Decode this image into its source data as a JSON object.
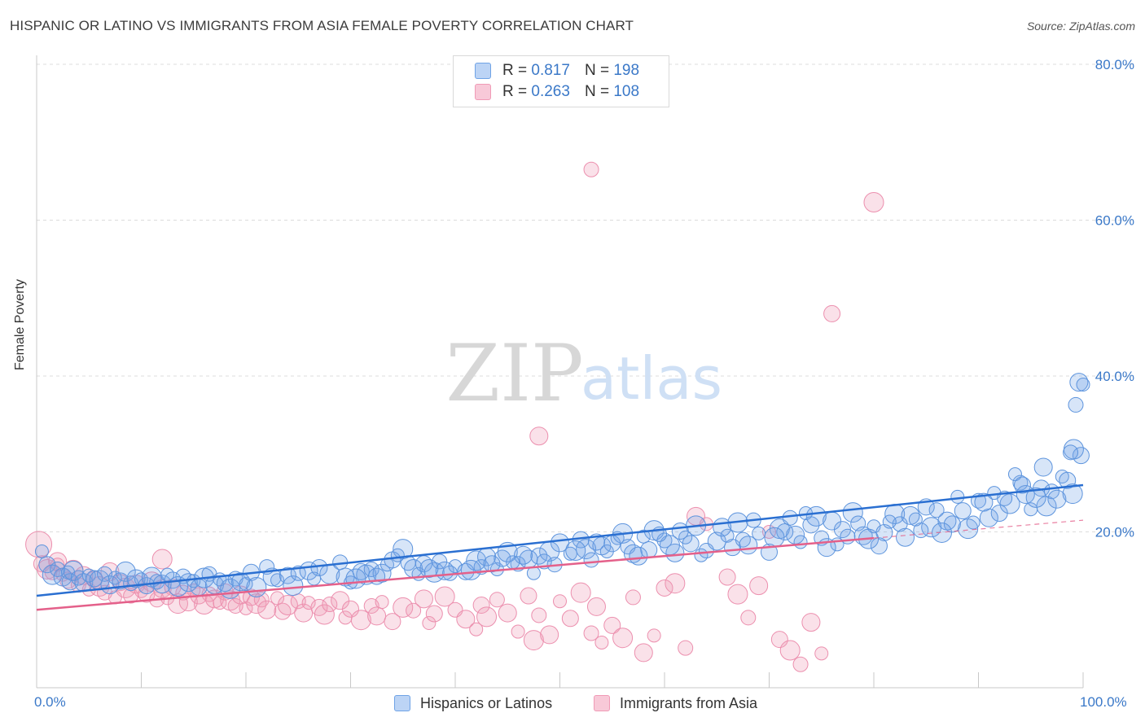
{
  "title": "HISPANIC OR LATINO VS IMMIGRANTS FROM ASIA FEMALE POVERTY CORRELATION CHART",
  "source": "Source: ZipAtlas.com",
  "watermark": {
    "zip": "ZIP",
    "atlas": "atlas"
  },
  "legend_top": {
    "rows": [
      {
        "r_label": "R =",
        "r_value": "0.817",
        "n_label": "N =",
        "n_value": "198"
      },
      {
        "r_label": "R =",
        "r_value": "0.263",
        "n_label": "N =",
        "n_value": "108"
      }
    ]
  },
  "legend_bottom": {
    "series1": "Hispanics or Latinos",
    "series2": "Immigrants from Asia"
  },
  "colors": {
    "blue": "#6fa3e6",
    "blue_line": "#2a6fd1",
    "pink": "#f09ab6",
    "pink_line": "#e4608a",
    "axis_text": "#3a78c8"
  },
  "chart_data": {
    "type": "scatter",
    "ylabel": "Female Poverty",
    "xlim": [
      0,
      100
    ],
    "ylim": [
      0,
      80
    ],
    "y_ticks": [
      "20.0%",
      "40.0%",
      "60.0%",
      "80.0%"
    ],
    "y_tick_values": [
      20,
      40,
      60,
      80
    ],
    "x_tick_labels": [
      "0.0%",
      "100.0%"
    ],
    "grid": true,
    "series": [
      {
        "name": "Hispanics or Latinos",
        "color": "#6fa3e6",
        "trend": {
          "x": [
            0,
            100
          ],
          "y": [
            11.8,
            26.0
          ]
        },
        "points": [
          [
            0.5,
            17.5
          ],
          [
            1,
            15.8
          ],
          [
            1.5,
            14.5
          ],
          [
            2,
            15.2
          ],
          [
            2.5,
            14.2
          ],
          [
            3,
            14.8
          ],
          [
            3.2,
            13.6
          ],
          [
            3.5,
            15.0
          ],
          [
            4,
            14.1
          ],
          [
            4.5,
            13.5
          ],
          [
            5,
            14.4
          ],
          [
            5.5,
            14.0
          ],
          [
            6,
            13.8
          ],
          [
            6.5,
            14.6
          ],
          [
            7,
            13.2
          ],
          [
            7.5,
            14.1
          ],
          [
            8,
            13.7
          ],
          [
            8.5,
            14.9
          ],
          [
            9,
            13.4
          ],
          [
            9.5,
            14.0
          ],
          [
            10,
            13.9
          ],
          [
            10.5,
            13.1
          ],
          [
            11,
            14.2
          ],
          [
            11.5,
            13.6
          ],
          [
            12,
            13.3
          ],
          [
            12.5,
            14.5
          ],
          [
            13,
            13.8
          ],
          [
            13.5,
            13.0
          ],
          [
            14,
            14.3
          ],
          [
            14.5,
            13.5
          ],
          [
            15,
            13.7
          ],
          [
            15.5,
            12.9
          ],
          [
            16,
            14.1
          ],
          [
            16.5,
            14.6
          ],
          [
            17,
            13.2
          ],
          [
            17.5,
            13.9
          ],
          [
            18,
            13.4
          ],
          [
            18.5,
            12.7
          ],
          [
            19,
            14.0
          ],
          [
            19.5,
            13.6
          ],
          [
            20,
            13.3
          ],
          [
            20.5,
            14.8
          ],
          [
            21,
            12.9
          ],
          [
            22,
            15.5
          ],
          [
            22.5,
            14.2
          ],
          [
            23,
            13.8
          ],
          [
            24,
            14.4
          ],
          [
            24.5,
            13.1
          ],
          [
            25,
            14.7
          ],
          [
            26,
            15.0
          ],
          [
            26.5,
            14.0
          ],
          [
            27,
            15.4
          ],
          [
            28,
            14.6
          ],
          [
            29,
            16.1
          ],
          [
            29.5,
            14.2
          ],
          [
            30,
            13.5
          ],
          [
            31,
            14.9
          ],
          [
            31.5,
            14.5
          ],
          [
            32,
            15.2
          ],
          [
            33,
            14.7
          ],
          [
            33.5,
            15.8
          ],
          [
            34,
            16.4
          ],
          [
            35,
            17.8
          ],
          [
            35.5,
            16.0
          ],
          [
            36,
            15.3
          ],
          [
            36.5,
            14.6
          ],
          [
            37,
            15.9
          ],
          [
            38,
            14.8
          ],
          [
            38.5,
            16.2
          ],
          [
            39,
            15.0
          ],
          [
            40,
            15.6
          ],
          [
            41,
            14.9
          ],
          [
            42,
            16.3
          ],
          [
            42.5,
            15.5
          ],
          [
            43,
            16.8
          ],
          [
            44,
            15.2
          ],
          [
            44.5,
            16.6
          ],
          [
            45,
            17.4
          ],
          [
            46,
            15.9
          ],
          [
            47,
            16.5
          ],
          [
            47.5,
            14.7
          ],
          [
            48,
            16.9
          ],
          [
            49,
            17.5
          ],
          [
            49.5,
            15.8
          ],
          [
            50,
            18.6
          ],
          [
            51,
            17.2
          ],
          [
            52,
            19.0
          ],
          [
            52.5,
            17.8
          ],
          [
            53,
            16.4
          ],
          [
            54,
            18.2
          ],
          [
            54.5,
            17.5
          ],
          [
            55,
            18.5
          ],
          [
            56,
            19.8
          ],
          [
            56.5,
            18.1
          ],
          [
            57,
            17.2
          ],
          [
            58,
            19.4
          ],
          [
            58.5,
            17.7
          ],
          [
            59,
            20.2
          ],
          [
            60,
            18.9
          ],
          [
            61,
            17.3
          ],
          [
            62,
            19.3
          ],
          [
            62.5,
            18.5
          ],
          [
            63,
            20.8
          ],
          [
            64,
            17.6
          ],
          [
            65,
            18.8
          ],
          [
            66,
            19.5
          ],
          [
            66.5,
            18.0
          ],
          [
            67,
            21.2
          ],
          [
            67.5,
            19.0
          ],
          [
            68,
            18.3
          ],
          [
            69,
            19.8
          ],
          [
            70,
            17.4
          ],
          [
            71,
            20.4
          ],
          [
            72,
            21.8
          ],
          [
            72.5,
            19.6
          ],
          [
            73,
            18.7
          ],
          [
            74,
            20.9
          ],
          [
            74.5,
            22.0
          ],
          [
            75,
            19.2
          ],
          [
            76,
            21.4
          ],
          [
            76.5,
            18.4
          ],
          [
            77,
            20.3
          ],
          [
            78,
            22.5
          ],
          [
            78.5,
            21.1
          ],
          [
            79,
            19.5
          ],
          [
            80,
            20.7
          ],
          [
            81,
            19.9
          ],
          [
            82,
            22.3
          ],
          [
            82.5,
            21.0
          ],
          [
            83,
            19.3
          ],
          [
            84,
            21.6
          ],
          [
            85,
            23.2
          ],
          [
            85.5,
            20.6
          ],
          [
            86,
            22.8
          ],
          [
            87,
            21.4
          ],
          [
            88,
            24.5
          ],
          [
            88.5,
            22.7
          ],
          [
            89,
            20.4
          ],
          [
            90,
            24.0
          ],
          [
            91,
            21.8
          ],
          [
            91.5,
            25.0
          ],
          [
            92,
            22.4
          ],
          [
            93,
            23.6
          ],
          [
            94,
            26.3
          ],
          [
            94.5,
            24.8
          ],
          [
            95,
            22.9
          ],
          [
            96,
            25.6
          ],
          [
            96.5,
            23.3
          ],
          [
            97,
            25.2
          ],
          [
            97.5,
            24.2
          ],
          [
            98,
            27.1
          ],
          [
            98.5,
            26.6
          ],
          [
            99,
            24.9
          ],
          [
            99.3,
            36.3
          ],
          [
            99.6,
            39.2
          ],
          [
            100,
            38.9
          ],
          [
            99.8,
            29.8
          ],
          [
            99.1,
            30.6
          ],
          [
            98.8,
            30.2
          ],
          [
            96.2,
            28.3
          ],
          [
            93.5,
            27.4
          ],
          [
            94.2,
            26.0
          ],
          [
            95.5,
            24.4
          ],
          [
            92.5,
            24.3
          ],
          [
            90.5,
            23.8
          ],
          [
            89.5,
            21.2
          ],
          [
            87.5,
            21.0
          ],
          [
            86.5,
            19.9
          ],
          [
            84.5,
            20.2
          ],
          [
            83.5,
            22.1
          ],
          [
            81.5,
            21.3
          ],
          [
            80.5,
            18.2
          ],
          [
            79.5,
            19.1
          ],
          [
            77.5,
            19.4
          ],
          [
            75.5,
            18.0
          ],
          [
            73.5,
            22.4
          ],
          [
            71.5,
            20.0
          ],
          [
            70.5,
            19.3
          ],
          [
            68.5,
            21.5
          ],
          [
            65.5,
            20.6
          ],
          [
            63.5,
            17.0
          ],
          [
            61.5,
            20.1
          ],
          [
            60.5,
            18.3
          ],
          [
            59.5,
            19.7
          ],
          [
            57.5,
            16.9
          ],
          [
            55.5,
            19.2
          ],
          [
            53.5,
            18.7
          ],
          [
            51.5,
            17.6
          ],
          [
            48.5,
            16.2
          ],
          [
            46.5,
            17.0
          ],
          [
            45.5,
            16.1
          ],
          [
            43.5,
            15.9
          ],
          [
            41.5,
            15.1
          ],
          [
            39.5,
            14.7
          ],
          [
            37.5,
            15.3
          ],
          [
            34.5,
            17.0
          ],
          [
            32.5,
            14.3
          ],
          [
            30.5,
            14.0
          ]
        ]
      },
      {
        "name": "Immigrants from Asia",
        "color": "#f09ab6",
        "trend": {
          "x": [
            0,
            80
          ],
          "y": [
            10.0,
            19.2
          ]
        },
        "points": [
          [
            0.2,
            18.4
          ],
          [
            0.5,
            15.9
          ],
          [
            1,
            15.2
          ],
          [
            1.5,
            14.8
          ],
          [
            2,
            16.2
          ],
          [
            2.5,
            14.5
          ],
          [
            3,
            13.8
          ],
          [
            3.5,
            15.1
          ],
          [
            4,
            13.2
          ],
          [
            4.5,
            14.4
          ],
          [
            5,
            12.6
          ],
          [
            5.5,
            13.9
          ],
          [
            6,
            13.0
          ],
          [
            6.5,
            12.2
          ],
          [
            7,
            14.9
          ],
          [
            7.5,
            11.6
          ],
          [
            8,
            13.5
          ],
          [
            8.5,
            12.8
          ],
          [
            9,
            11.8
          ],
          [
            9.5,
            13.3
          ],
          [
            10,
            12.4
          ],
          [
            10.5,
            12.0
          ],
          [
            11,
            13.6
          ],
          [
            11.5,
            11.3
          ],
          [
            12,
            12.7
          ],
          [
            12.5,
            11.5
          ],
          [
            13,
            12.9
          ],
          [
            13.5,
            10.8
          ],
          [
            14,
            12.2
          ],
          [
            14.5,
            11.0
          ],
          [
            15,
            12.5
          ],
          [
            15.5,
            11.8
          ],
          [
            16,
            10.7
          ],
          [
            16.5,
            12.0
          ],
          [
            17,
            11.4
          ],
          [
            17.5,
            10.9
          ],
          [
            18,
            12.3
          ],
          [
            18.5,
            11.2
          ],
          [
            19,
            10.5
          ],
          [
            19.5,
            11.9
          ],
          [
            20,
            10.2
          ],
          [
            20.5,
            11.6
          ],
          [
            21,
            10.8
          ],
          [
            21.5,
            11.3
          ],
          [
            22,
            10.0
          ],
          [
            23,
            11.5
          ],
          [
            23.5,
            9.8
          ],
          [
            24,
            10.6
          ],
          [
            25,
            11.1
          ],
          [
            25.5,
            9.6
          ],
          [
            26,
            10.9
          ],
          [
            27,
            10.3
          ],
          [
            27.5,
            9.4
          ],
          [
            28,
            10.7
          ],
          [
            29,
            11.2
          ],
          [
            29.5,
            9.0
          ],
          [
            30,
            10.1
          ],
          [
            31,
            8.7
          ],
          [
            32,
            10.5
          ],
          [
            32.5,
            9.2
          ],
          [
            33,
            11.0
          ],
          [
            34,
            8.5
          ],
          [
            35,
            10.3
          ],
          [
            36,
            9.9
          ],
          [
            37,
            11.4
          ],
          [
            37.5,
            8.3
          ],
          [
            38,
            9.5
          ],
          [
            39,
            11.7
          ],
          [
            40,
            10.0
          ],
          [
            41,
            8.8
          ],
          [
            42,
            7.5
          ],
          [
            42.5,
            10.6
          ],
          [
            43,
            9.1
          ],
          [
            44,
            11.3
          ],
          [
            45,
            9.6
          ],
          [
            46,
            7.2
          ],
          [
            47,
            11.8
          ],
          [
            47.5,
            6.1
          ],
          [
            48,
            9.3
          ],
          [
            49,
            6.8
          ],
          [
            50,
            11.1
          ],
          [
            51,
            8.9
          ],
          [
            52,
            12.2
          ],
          [
            53,
            7.0
          ],
          [
            53.5,
            10.4
          ],
          [
            54,
            5.8
          ],
          [
            55,
            8.0
          ],
          [
            56,
            6.4
          ],
          [
            57,
            11.6
          ],
          [
            58,
            4.5
          ],
          [
            59,
            6.7
          ],
          [
            60,
            12.8
          ],
          [
            61,
            13.4
          ],
          [
            62,
            5.1
          ],
          [
            63,
            22.0
          ],
          [
            64,
            21.0
          ],
          [
            66,
            14.2
          ],
          [
            67,
            12.0
          ],
          [
            68,
            9.0
          ],
          [
            69,
            13.1
          ],
          [
            70,
            20.0
          ],
          [
            71,
            6.2
          ],
          [
            72,
            4.8
          ],
          [
            73,
            3.0
          ],
          [
            74,
            8.4
          ],
          [
            75,
            4.4
          ],
          [
            76,
            48.0
          ],
          [
            80,
            62.3
          ],
          [
            53,
            66.5
          ],
          [
            48,
            32.3
          ],
          [
            2,
            15.8
          ],
          [
            12,
            16.5
          ]
        ]
      }
    ]
  }
}
